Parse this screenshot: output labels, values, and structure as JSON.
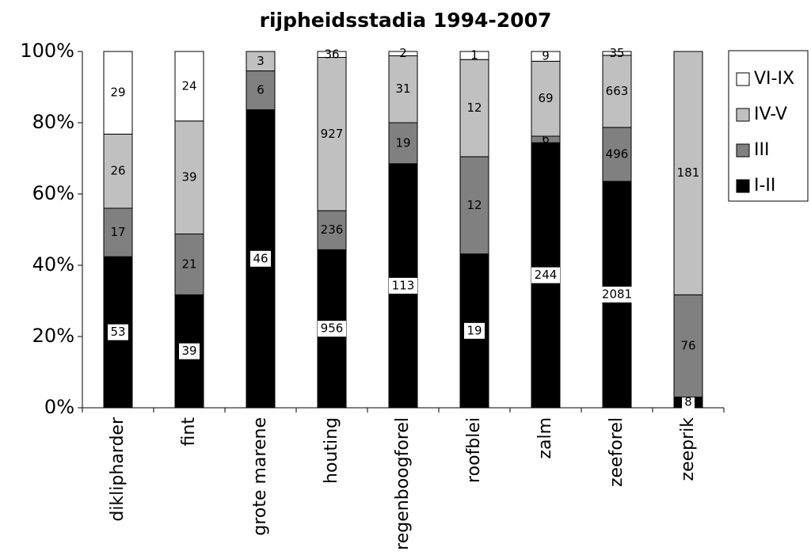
{
  "chart_data": {
    "type": "bar",
    "stacking": "percent",
    "title": "rijpheidsstadia 1994-2007",
    "categories": [
      "diklipharder",
      "fint",
      "grote marene",
      "houting",
      "regenboogforel",
      "roofblei",
      "zalm",
      "zeeforel",
      "zeeprik"
    ],
    "series": [
      {
        "name": "I-II",
        "color": "#000000",
        "values": [
          53,
          39,
          46,
          956,
          113,
          19,
          244,
          2081,
          8
        ]
      },
      {
        "name": "III",
        "color": "#808080",
        "values": [
          17,
          21,
          6,
          236,
          19,
          12,
          6,
          496,
          76
        ]
      },
      {
        "name": "IV-V",
        "color": "#c0c0c0",
        "values": [
          26,
          39,
          3,
          927,
          31,
          12,
          69,
          663,
          181
        ]
      },
      {
        "name": "VI-IX",
        "color": "#ffffff",
        "values": [
          29,
          24,
          null,
          36,
          2,
          1,
          9,
          35,
          null
        ]
      }
    ],
    "ylim": [
      0,
      100
    ],
    "yticks": [
      {
        "value": 0,
        "label": "0%"
      },
      {
        "value": 20,
        "label": "20%"
      },
      {
        "value": 40,
        "label": "40%"
      },
      {
        "value": 60,
        "label": "60%"
      },
      {
        "value": 80,
        "label": "80%"
      },
      {
        "value": 100,
        "label": "100%"
      }
    ],
    "grid": false,
    "legend": "right"
  }
}
